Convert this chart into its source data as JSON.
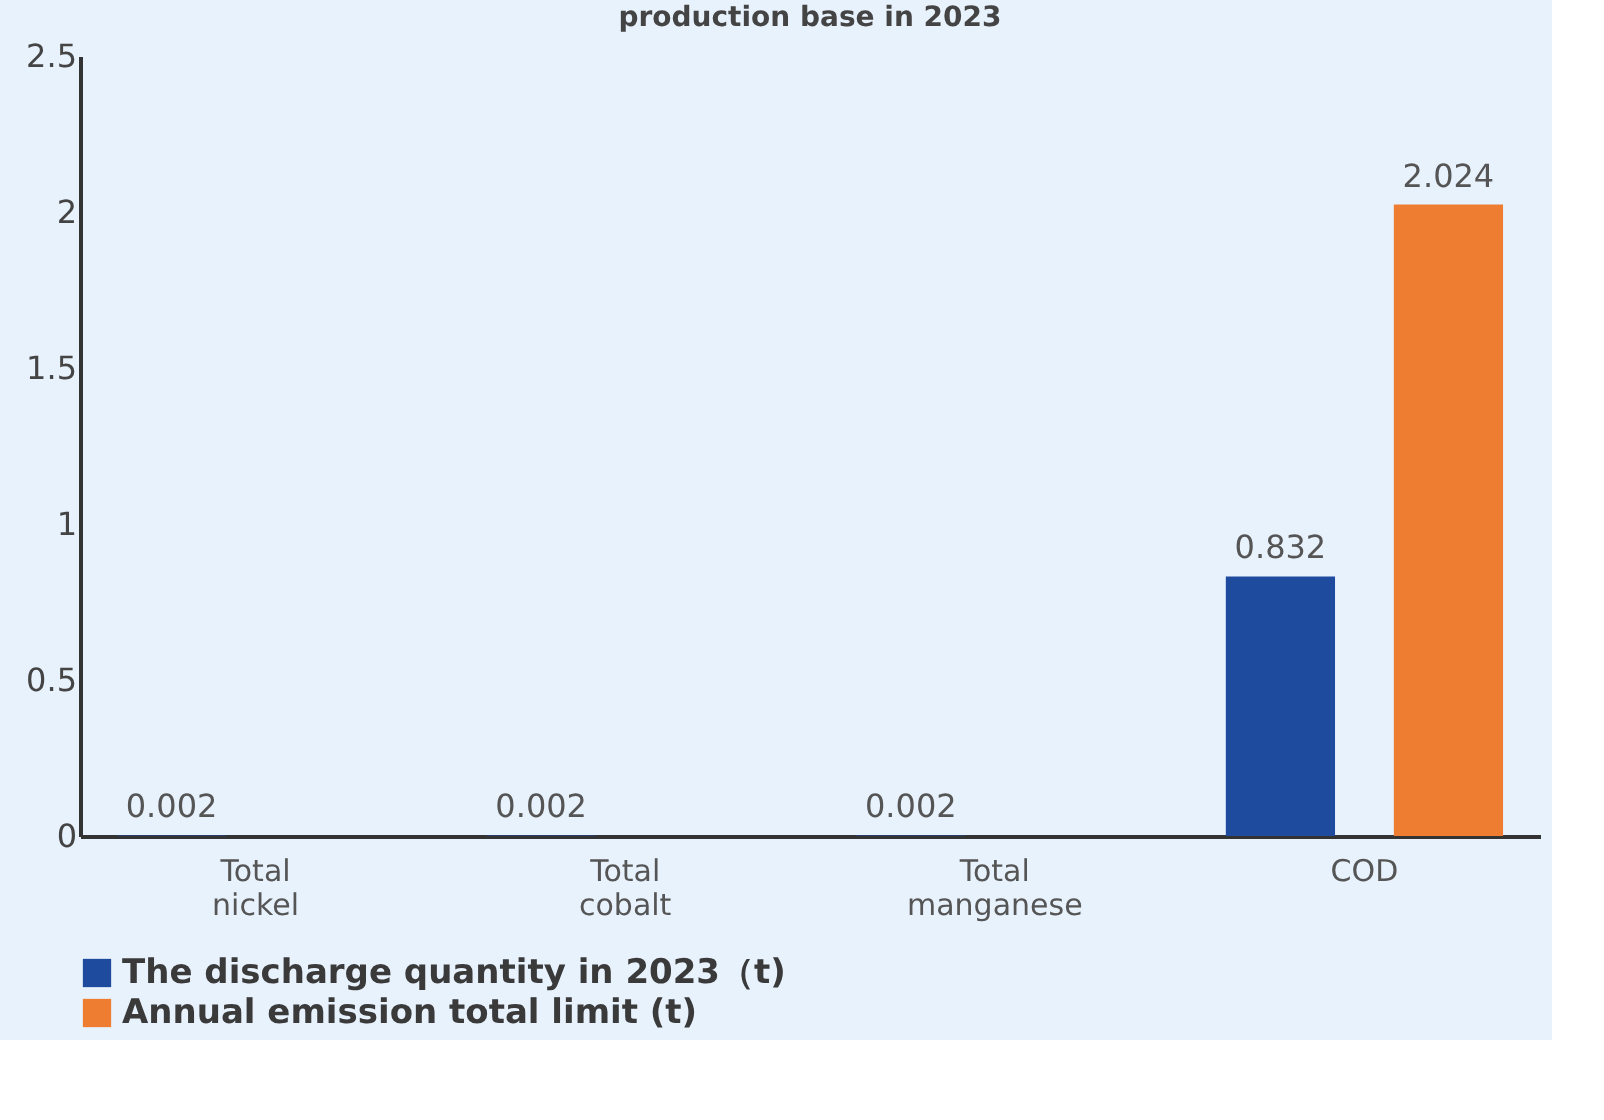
{
  "chart_data": {
    "type": "bar",
    "title": "production base in 2023",
    "categories": [
      "Total\nnickel",
      "Total\ncobalt",
      "Total\nmanganese",
      "COD"
    ],
    "series": [
      {
        "name": "The discharge quantity in 2023（t)",
        "color": "#1f4b9e",
        "values": [
          0.002,
          0.002,
          0.002,
          0.832
        ]
      },
      {
        "name": "Annual emission total limit (t)",
        "color": "#ee7d31",
        "values": [
          null,
          null,
          null,
          2.024
        ]
      }
    ],
    "data_labels": true,
    "ylim": [
      0,
      2.5
    ],
    "yticks": [
      0,
      0.5,
      1,
      1.5,
      2,
      2.5
    ],
    "grid": false,
    "legend": "bottom"
  }
}
